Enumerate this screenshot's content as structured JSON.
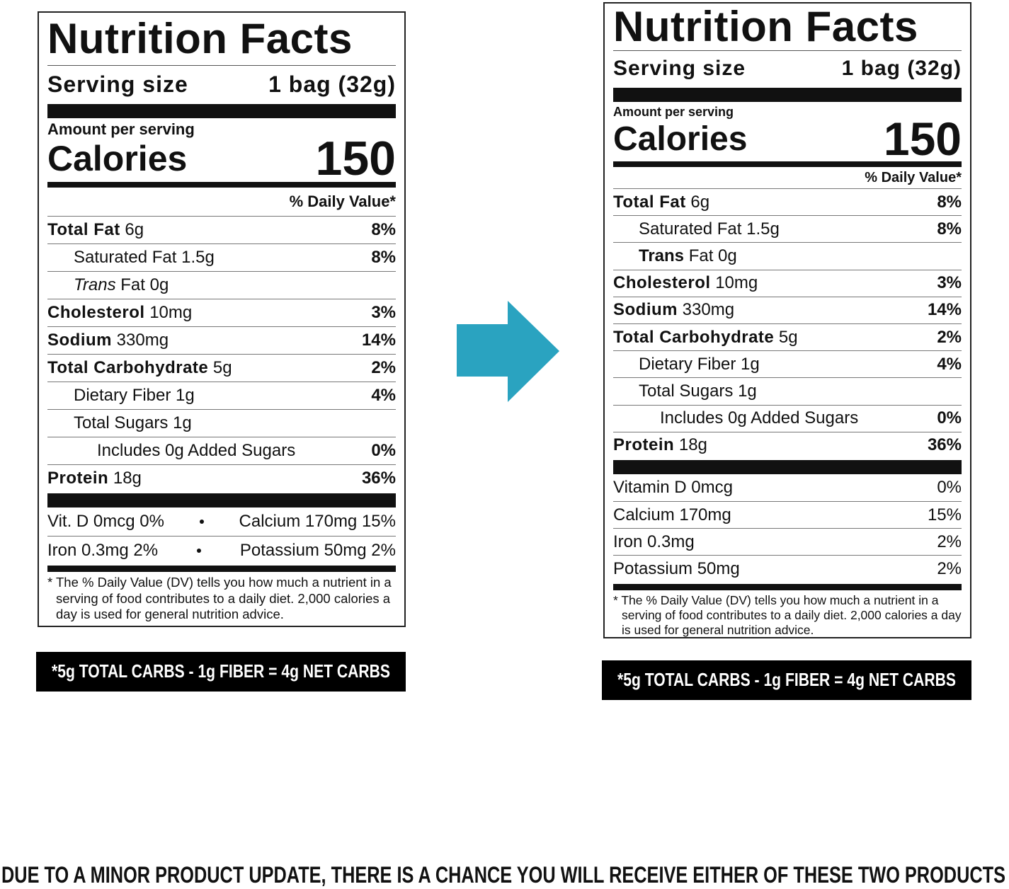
{
  "labels": [
    {
      "title": "Nutrition Facts",
      "serving_label": "Serving size",
      "serving_value": "1 bag (32g)",
      "amount_per_serving": "Amount per serving",
      "calories_label": "Calories",
      "calories_value": "150",
      "dv_header": "% Daily Value*",
      "nutrients": [
        {
          "name": "Total Fat",
          "amount": "6g",
          "dv": "8%"
        },
        {
          "name": "Saturated Fat",
          "amount": "1.5g",
          "dv": "8%"
        },
        {
          "name": "Trans",
          "amount": "Fat 0g"
        },
        {
          "name": "Cholesterol",
          "amount": "10mg",
          "dv": "3%"
        },
        {
          "name": "Sodium",
          "amount": "330mg",
          "dv": "14%"
        },
        {
          "name": "Total Carbohydrate",
          "amount": "5g",
          "dv": "2%"
        },
        {
          "name": "Dietary Fiber",
          "amount": "1g",
          "dv": "4%"
        },
        {
          "name": "Total Sugars",
          "amount": "1g"
        },
        {
          "name": "Includes 0g Added Sugars",
          "dv": "0%"
        },
        {
          "name": "Protein",
          "amount": "18g",
          "dv": "36%"
        }
      ],
      "micros": [
        [
          "Vit. D 0mcg 0%",
          "Calcium 170mg 15%"
        ],
        [
          "Iron 0.3mg 2%",
          "Potassium 50mg 2%"
        ]
      ],
      "footnote": "* The % Daily Value (DV) tells you how much a nutrient in a serving of food contributes to a daily diet. 2,000 calories a day is used for general nutrition advice.",
      "net_carbs": "*5g TOTAL CARBS - 1g FIBER = 4g NET CARBS"
    },
    {
      "title": "Nutrition Facts",
      "serving_label": "Serving size",
      "serving_value": "1 bag (32g)",
      "amount_per_serving": "Amount per serving",
      "calories_label": "Calories",
      "calories_value": "150",
      "dv_header": "% Daily Value*",
      "nutrients": [
        {
          "name": "Total Fat",
          "amount": "6g",
          "dv": "8%"
        },
        {
          "name": "Saturated Fat",
          "amount": "1.5g",
          "dv": "8%"
        },
        {
          "name": "Trans",
          "amount": "Fat 0g"
        },
        {
          "name": "Cholesterol",
          "amount": "10mg",
          "dv": "3%"
        },
        {
          "name": "Sodium",
          "amount": "330mg",
          "dv": "14%"
        },
        {
          "name": "Total Carbohydrate",
          "amount": "5g",
          "dv": "2%"
        },
        {
          "name": "Dietary Fiber",
          "amount": "1g",
          "dv": "4%"
        },
        {
          "name": "Total Sugars",
          "amount": "1g"
        },
        {
          "name": "Includes 0g Added Sugars",
          "dv": "0%"
        },
        {
          "name": "Protein",
          "amount": "18g",
          "dv": "36%"
        }
      ],
      "micros": [
        {
          "name": "Vitamin D 0mcg",
          "dv": "0%"
        },
        {
          "name": "Calcium 170mg",
          "dv": "15%"
        },
        {
          "name": "Iron 0.3mg",
          "dv": "2%"
        },
        {
          "name": "Potassium 50mg",
          "dv": "2%"
        }
      ],
      "footnote": "* The % Daily Value (DV) tells you how much a nutrient in a serving of food contributes to a daily diet. 2,000 calories a day is used for general nutrition advice.",
      "net_carbs": "*5g TOTAL CARBS - 1g FIBER = 4g NET CARBS"
    }
  ],
  "notice": "DUE TO A MINOR PRODUCT UPDATE, THERE IS A CHANCE YOU WILL RECEIVE EITHER OF THESE TWO PRODUCTS"
}
